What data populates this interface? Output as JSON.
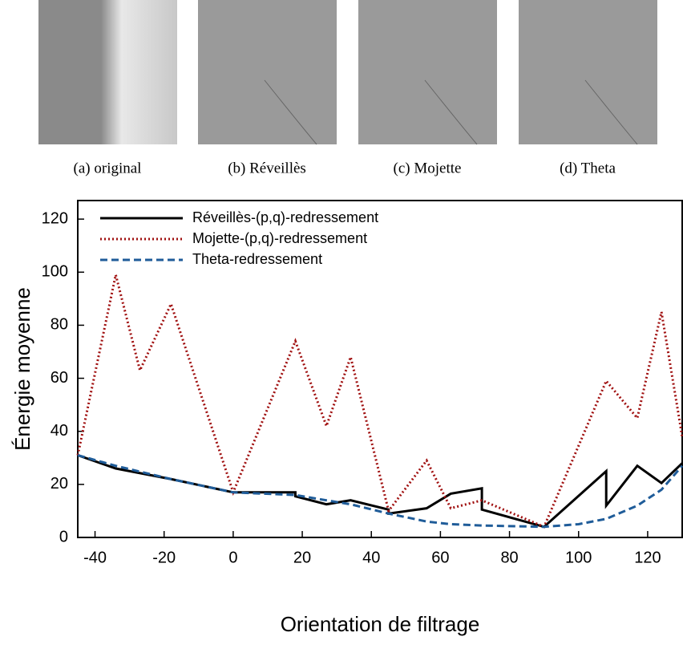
{
  "panels": [
    "(a) original",
    "(b) Réveillès",
    "(c) Mojette",
    "(d) Theta"
  ],
  "chart_data": {
    "type": "line",
    "x_label": "Orientation de filtrage",
    "y_label": "Énergie moyenne",
    "xlim": [
      -45,
      130
    ],
    "ylim": [
      0,
      127
    ],
    "xticks": [
      -40,
      -20,
      0,
      20,
      40,
      60,
      80,
      100,
      120
    ],
    "yticks": [
      0,
      20,
      40,
      60,
      80,
      100,
      120
    ],
    "series": [
      {
        "name": "Réveillès-(p,q)-redressement",
        "color": "#000000",
        "style": "solid",
        "x": [
          -45,
          -34,
          -18,
          0,
          18,
          18,
          27,
          34,
          45,
          45,
          56,
          63,
          72,
          72,
          90,
          108,
          108,
          117,
          124,
          130
        ],
        "values": [
          31,
          26,
          22,
          17,
          17,
          15.5,
          12.5,
          14,
          10.5,
          9,
          11,
          16.5,
          18.5,
          10.5,
          4,
          25,
          12,
          27,
          20.5,
          28
        ]
      },
      {
        "name": "Mojette-(p,q)-redressement",
        "color": "#a01010",
        "style": "dotted",
        "x": [
          -45,
          -34,
          -27,
          -18,
          0,
          18,
          27,
          34,
          45,
          56,
          63,
          72,
          90,
          108,
          117,
          124,
          130
        ],
        "values": [
          31,
          99,
          63,
          88,
          17,
          74,
          42,
          68,
          10,
          29,
          11,
          14,
          4,
          59,
          45,
          85,
          38
        ]
      },
      {
        "name": "Theta-redressement",
        "color": "#1f5c99",
        "style": "dashed",
        "x": [
          -45,
          -34,
          -18,
          0,
          18,
          27,
          34,
          45,
          56,
          63,
          72,
          90,
          100,
          108,
          117,
          124,
          130
        ],
        "values": [
          31,
          27,
          22,
          17,
          16,
          14,
          12.5,
          9,
          6,
          5,
          4.5,
          4,
          5,
          7,
          12,
          18,
          27
        ]
      }
    ]
  }
}
